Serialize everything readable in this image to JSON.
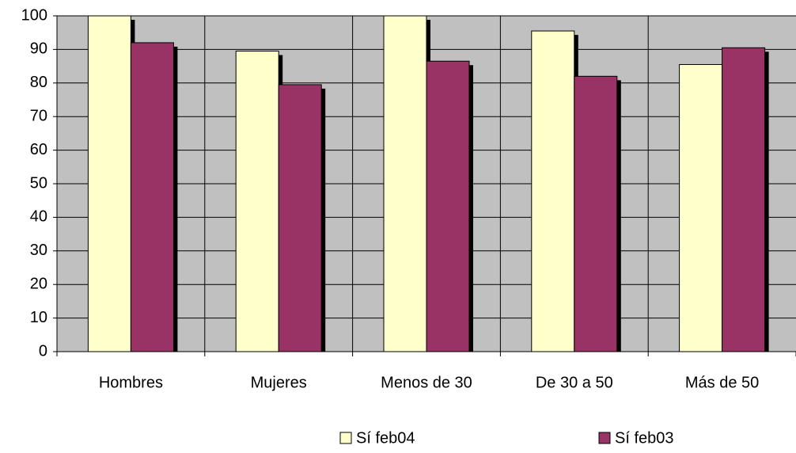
{
  "chart_data": {
    "type": "bar",
    "categories": [
      "Hombres",
      "Mujeres",
      "Menos de 30",
      "De 30 a 50",
      "Más de 50"
    ],
    "series": [
      {
        "name": "Sí feb04",
        "color": "#ffffcc",
        "values": [
          100,
          89.5,
          100,
          95.5,
          85.5
        ]
      },
      {
        "name": "Sí feb03",
        "color": "#993366",
        "values": [
          92,
          79.5,
          86.5,
          82,
          90.5
        ]
      }
    ],
    "ylim": [
      0,
      100
    ],
    "yticks": [
      0,
      10,
      20,
      30,
      40,
      50,
      60,
      70,
      80,
      90,
      100
    ],
    "grid": true,
    "legend": "bottom",
    "background": "#c0c0c0"
  }
}
